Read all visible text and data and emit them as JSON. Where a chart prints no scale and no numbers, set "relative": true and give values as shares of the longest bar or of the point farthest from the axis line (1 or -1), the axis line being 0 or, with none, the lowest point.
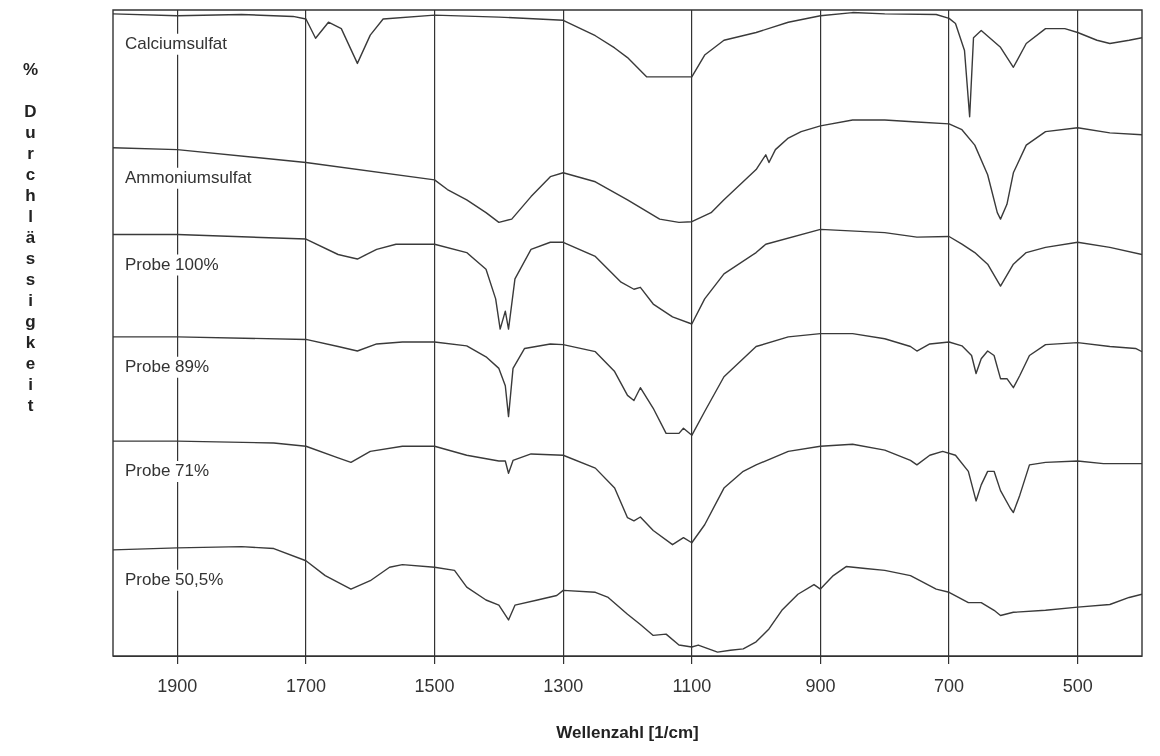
{
  "chart_data": {
    "type": "line",
    "xlabel": "Wellenzahl [1/cm]",
    "ylabel": "% Durchlässigkeit",
    "relative": true,
    "xlim": [
      2000,
      400
    ],
    "xticks": [
      1900,
      1700,
      1500,
      1300,
      1100,
      900,
      700,
      500
    ],
    "grid": "x",
    "legend": false,
    "marker": "none",
    "series": [
      {
        "name": "Calciumsulfat",
        "color": "#3a3a3a",
        "x": [
          2000,
          1900,
          1800,
          1720,
          1700,
          1685,
          1665,
          1645,
          1620,
          1600,
          1580,
          1500,
          1400,
          1300,
          1250,
          1220,
          1200,
          1170,
          1130,
          1100,
          1080,
          1050,
          1000,
          950,
          900,
          850,
          800,
          720,
          700,
          690,
          676,
          668,
          662,
          650,
          620,
          600,
          580,
          550,
          520,
          500,
          470,
          450,
          420,
          400
        ],
        "values": [
          0.998,
          0.995,
          0.997,
          0.994,
          0.99,
          0.96,
          0.985,
          0.975,
          0.921,
          0.965,
          0.99,
          0.996,
          0.993,
          0.988,
          0.964,
          0.945,
          0.93,
          0.9,
          0.9,
          0.9,
          0.934,
          0.957,
          0.969,
          0.985,
          0.995,
          1.0,
          0.998,
          0.997,
          0.991,
          0.983,
          0.941,
          0.838,
          0.961,
          0.972,
          0.946,
          0.915,
          0.952,
          0.975,
          0.975,
          0.969,
          0.957,
          0.952,
          0.957,
          0.961
        ]
      },
      {
        "name": "Ammoniumsulfat",
        "color": "#3a3a3a",
        "x": [
          2000,
          1900,
          1700,
          1500,
          1480,
          1450,
          1420,
          1400,
          1380,
          1350,
          1320,
          1300,
          1250,
          1200,
          1150,
          1120,
          1100,
          1070,
          1050,
          1000,
          985,
          980,
          970,
          950,
          930,
          900,
          850,
          800,
          750,
          700,
          680,
          660,
          640,
          625,
          620,
          610,
          600,
          580,
          550,
          500,
          450,
          400
        ],
        "values": [
          0.79,
          0.787,
          0.767,
          0.74,
          0.725,
          0.709,
          0.689,
          0.674,
          0.679,
          0.714,
          0.745,
          0.751,
          0.737,
          0.709,
          0.679,
          0.674,
          0.675,
          0.689,
          0.709,
          0.756,
          0.779,
          0.767,
          0.787,
          0.805,
          0.815,
          0.824,
          0.833,
          0.833,
          0.83,
          0.827,
          0.818,
          0.794,
          0.748,
          0.689,
          0.679,
          0.702,
          0.751,
          0.794,
          0.815,
          0.821,
          0.813,
          0.81
        ]
      },
      {
        "name": "Probe 100%",
        "color": "#3a3a3a",
        "x": [
          2000,
          1900,
          1700,
          1650,
          1620,
          1590,
          1560,
          1500,
          1450,
          1420,
          1405,
          1398,
          1390,
          1385,
          1375,
          1350,
          1320,
          1300,
          1250,
          1210,
          1190,
          1180,
          1160,
          1130,
          1100,
          1080,
          1050,
          1000,
          985,
          900,
          800,
          750,
          700,
          680,
          660,
          640,
          620,
          600,
          580,
          550,
          500,
          450,
          400
        ],
        "values": [
          0.655,
          0.655,
          0.648,
          0.624,
          0.617,
          0.632,
          0.64,
          0.64,
          0.627,
          0.601,
          0.555,
          0.508,
          0.536,
          0.508,
          0.586,
          0.632,
          0.643,
          0.643,
          0.621,
          0.581,
          0.57,
          0.573,
          0.547,
          0.527,
          0.516,
          0.555,
          0.594,
          0.627,
          0.64,
          0.663,
          0.658,
          0.651,
          0.652,
          0.64,
          0.627,
          0.609,
          0.575,
          0.609,
          0.627,
          0.635,
          0.643,
          0.635,
          0.624
        ]
      },
      {
        "name": "Probe 89%",
        "color": "#3a3a3a",
        "x": [
          2000,
          1900,
          1700,
          1650,
          1620,
          1590,
          1550,
          1500,
          1450,
          1420,
          1400,
          1390,
          1385,
          1378,
          1360,
          1320,
          1300,
          1250,
          1220,
          1200,
          1190,
          1180,
          1160,
          1140,
          1120,
          1113,
          1100,
          1080,
          1050,
          1000,
          950,
          900,
          850,
          800,
          760,
          750,
          730,
          700,
          680,
          665,
          658,
          650,
          640,
          630,
          620,
          610,
          600,
          590,
          575,
          550,
          500,
          450,
          410,
          400
        ],
        "values": [
          0.496,
          0.496,
          0.492,
          0.481,
          0.474,
          0.485,
          0.488,
          0.488,
          0.482,
          0.465,
          0.447,
          0.42,
          0.372,
          0.447,
          0.478,
          0.485,
          0.484,
          0.473,
          0.442,
          0.405,
          0.397,
          0.417,
          0.385,
          0.346,
          0.346,
          0.354,
          0.343,
          0.38,
          0.434,
          0.481,
          0.496,
          0.501,
          0.501,
          0.493,
          0.481,
          0.474,
          0.485,
          0.488,
          0.482,
          0.467,
          0.439,
          0.462,
          0.474,
          0.467,
          0.431,
          0.431,
          0.417,
          0.436,
          0.467,
          0.484,
          0.487,
          0.481,
          0.478,
          0.473
        ]
      },
      {
        "name": "Probe 71%",
        "color": "#3a3a3a",
        "x": [
          2000,
          1900,
          1750,
          1700,
          1650,
          1630,
          1600,
          1550,
          1500,
          1450,
          1400,
          1390,
          1385,
          1378,
          1350,
          1300,
          1250,
          1220,
          1200,
          1190,
          1180,
          1160,
          1130,
          1113,
          1100,
          1080,
          1050,
          1020,
          1000,
          950,
          900,
          850,
          800,
          760,
          750,
          730,
          710,
          690,
          670,
          658,
          650,
          640,
          630,
          620,
          605,
          600,
          590,
          575,
          550,
          500,
          460,
          400
        ],
        "values": [
          0.334,
          0.334,
          0.331,
          0.326,
          0.308,
          0.301,
          0.318,
          0.326,
          0.326,
          0.312,
          0.303,
          0.303,
          0.284,
          0.304,
          0.314,
          0.312,
          0.292,
          0.261,
          0.215,
          0.21,
          0.216,
          0.195,
          0.173,
          0.184,
          0.176,
          0.204,
          0.261,
          0.287,
          0.297,
          0.318,
          0.326,
          0.329,
          0.32,
          0.304,
          0.297,
          0.312,
          0.318,
          0.312,
          0.287,
          0.241,
          0.266,
          0.287,
          0.287,
          0.257,
          0.23,
          0.223,
          0.25,
          0.297,
          0.301,
          0.303,
          0.299,
          0.299
        ]
      },
      {
        "name": "Probe 50,5%",
        "color": "#3a3a3a",
        "x": [
          2000,
          1900,
          1800,
          1750,
          1700,
          1670,
          1630,
          1600,
          1570,
          1550,
          1500,
          1469,
          1450,
          1420,
          1400,
          1385,
          1375,
          1340,
          1310,
          1300,
          1250,
          1230,
          1200,
          1180,
          1160,
          1140,
          1120,
          1100,
          1090,
          1060,
          1040,
          1020,
          1000,
          980,
          960,
          935,
          910,
          900,
          880,
          860,
          830,
          800,
          760,
          720,
          700,
          670,
          650,
          630,
          620,
          600,
          550,
          500,
          450,
          420,
          400
        ],
        "values": [
          0.165,
          0.168,
          0.17,
          0.167,
          0.148,
          0.125,
          0.104,
          0.117,
          0.138,
          0.142,
          0.138,
          0.133,
          0.107,
          0.087,
          0.079,
          0.056,
          0.079,
          0.087,
          0.094,
          0.102,
          0.099,
          0.091,
          0.065,
          0.049,
          0.032,
          0.034,
          0.017,
          0.014,
          0.017,
          0.006,
          0.009,
          0.011,
          0.022,
          0.042,
          0.071,
          0.096,
          0.111,
          0.104,
          0.125,
          0.139,
          0.136,
          0.133,
          0.125,
          0.104,
          0.099,
          0.083,
          0.083,
          0.071,
          0.063,
          0.068,
          0.071,
          0.076,
          0.08,
          0.091,
          0.096
        ]
      }
    ]
  }
}
